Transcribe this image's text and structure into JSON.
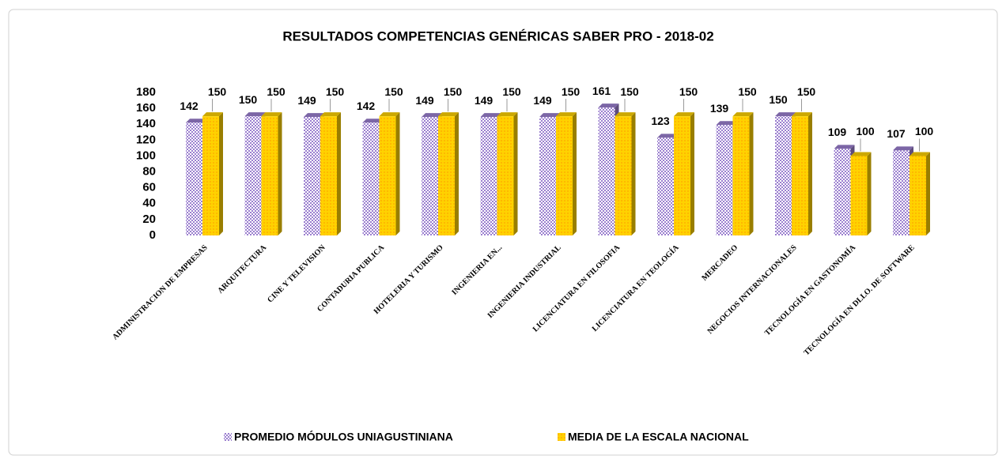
{
  "chart_data": {
    "type": "bar3d",
    "title": "RESULTADOS COMPETENCIAS GENÉRICAS SABER PRO  - 2018-02",
    "categories": [
      "ADMINISTRACION DE EMPRESAS",
      "ARQUITECTURA",
      "CINE Y TELEVISION",
      "CONTADURIA PUBLICA",
      "HOTELERIA Y TURISMO",
      "INGENIERIA EN...",
      "INGENIERIA INDUSTRIAL",
      "LICENCIATURA EN FILOSOFIA",
      "LICENCIATURA EN TEOLOGÍA",
      "MERCADEO",
      "NEGOCIOS INTERNACIONALES",
      "TECNOLOGÍA EN GASTONOMÍA",
      "TECNOLOGÍA EN DLLO. DE SOFTWARE"
    ],
    "series": [
      {
        "name": "PROMEDIO MÓDULOS UNIAGUSTINIANA",
        "color": "#9b7fcf",
        "values": [
          142,
          150,
          149,
          142,
          149,
          149,
          149,
          161,
          123,
          139,
          150,
          109,
          107
        ]
      },
      {
        "name": "MEDIA DE LA ESCALA NACIONAL",
        "color": "#ffd200",
        "values": [
          150,
          150,
          150,
          150,
          150,
          150,
          150,
          150,
          150,
          150,
          150,
          100,
          100
        ]
      }
    ],
    "ylim": [
      0,
      180
    ],
    "yticks": [
      0,
      20,
      40,
      60,
      80,
      100,
      120,
      140,
      160,
      180
    ],
    "grid": false,
    "legend": "bottom"
  }
}
